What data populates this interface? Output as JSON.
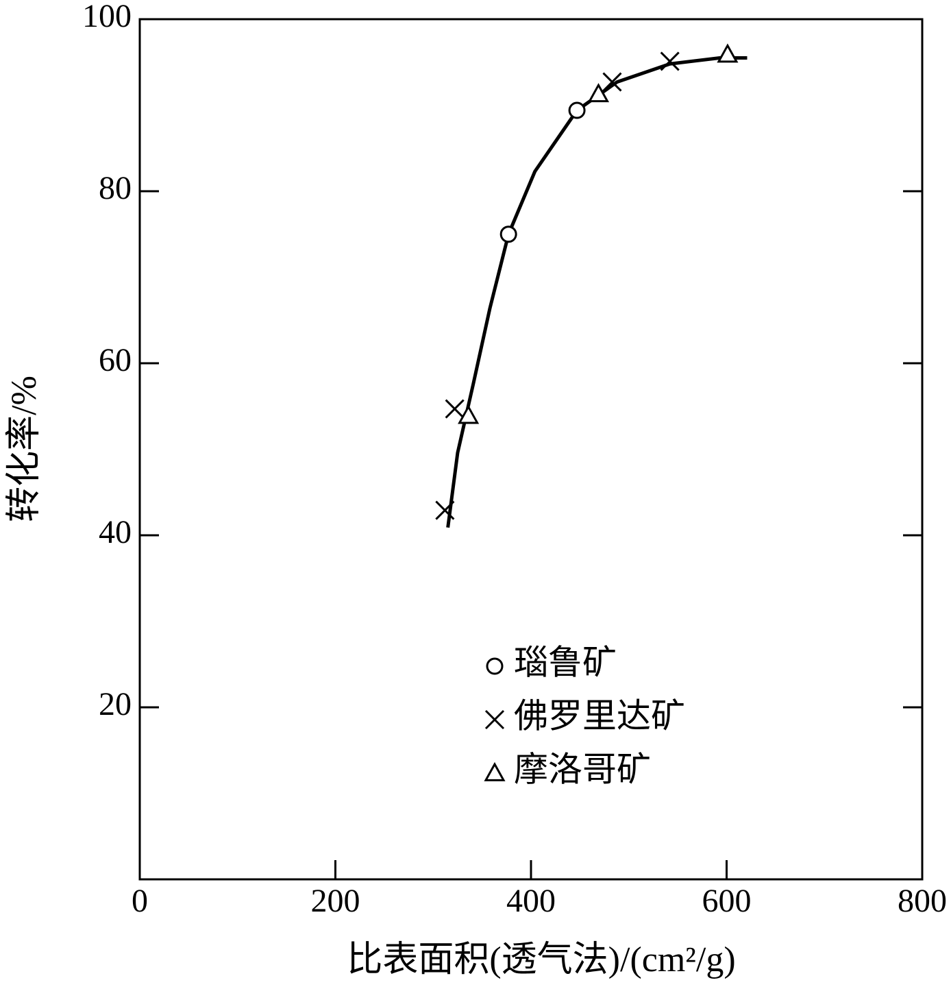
{
  "chart_data": {
    "type": "scatter",
    "x_label": "比表面积(透气法)/(cm²/g)",
    "y_label": "转化率/%",
    "xlim": [
      0,
      800
    ],
    "xticks": [
      0,
      200,
      400,
      600,
      800
    ],
    "ylim": [
      0,
      100
    ],
    "yticks": [
      20,
      40,
      60,
      80,
      100
    ],
    "curve": {
      "color": "#000000",
      "x": [
        315,
        325,
        341,
        358,
        377,
        404,
        447,
        488,
        542,
        593,
        621
      ],
      "y": [
        40.9,
        49.6,
        57.6,
        66.4,
        75.0,
        82.3,
        89.4,
        92.7,
        94.8,
        95.5,
        95.5
      ]
    },
    "series": [
      {
        "name": "瑙鲁矿",
        "marker": "circle",
        "color": "#000000",
        "x": [
          377,
          447
        ],
        "values": [
          75.0,
          89.4
        ]
      },
      {
        "name": "佛罗里达矿",
        "marker": "x",
        "color": "#000000",
        "x": [
          312,
          322,
          483,
          542
        ],
        "values": [
          42.9,
          54.7,
          92.7,
          95.1
        ]
      },
      {
        "name": "摩洛哥矿",
        "marker": "triangle",
        "color": "#000000",
        "x": [
          336,
          469,
          601
        ],
        "values": [
          53.9,
          91.3,
          95.9
        ]
      }
    ]
  }
}
